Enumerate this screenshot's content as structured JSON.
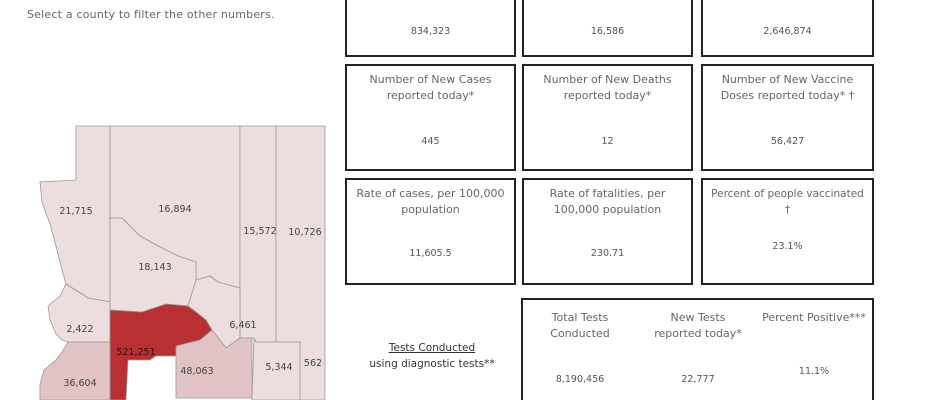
{
  "instruction": "Select a county to filter the other numbers.",
  "county_labels": [
    "21,715",
    "16,894",
    "15,572",
    "10,726",
    "18,143",
    "6,461",
    "2,422",
    "521,251",
    "48,063",
    "5,344",
    "562",
    "36,604"
  ],
  "top_values": [
    "834,323",
    "16,586",
    "2,646,874"
  ],
  "new_cases": {
    "title_1": "Number of New Cases",
    "title_2": "reported today*",
    "value": "445"
  },
  "new_deaths": {
    "title_1": "Number of New Deaths",
    "title_2": "reported today*",
    "value": "12"
  },
  "new_doses": {
    "title_1": "Number of New Vaccine",
    "title_2": "Doses reported today* †",
    "value": "56,427"
  },
  "case_rate": {
    "title_1": "Rate of cases, per 100,000",
    "title_2": "population",
    "value": "11,605.5"
  },
  "fatality_rate": {
    "title_1": "Rate of fatalities, per",
    "title_2": "100,000 population",
    "value": "230.71"
  },
  "pct_vaccinated": {
    "title_1": "Percent of people vaccinated †",
    "value": "23.1%"
  },
  "tests": {
    "heading": "Tests Conducted",
    "subheading": "using diagnostic tests**",
    "total_title_1": "Total Tests",
    "total_title_2": "Conducted",
    "total_value": "8,190,456",
    "new_title_1": "New Tests",
    "new_title_2": "reported today*",
    "new_value": "22,777",
    "pct_title": "Percent Positive***",
    "pct_value": "11.1%"
  },
  "colors": {
    "county_light": "#ecdedf",
    "county_medium": "#e2c3c5",
    "county_dark": "#b83032",
    "county_border": "#9a9a9a",
    "card_border": "#222222"
  }
}
